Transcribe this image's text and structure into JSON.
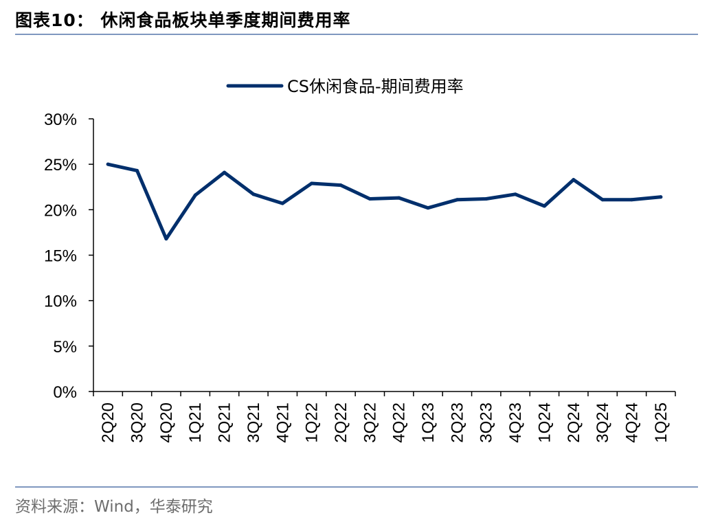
{
  "figure_title": "图表10：  休闲食品板块单季度期间费用率",
  "source": "资料来源：Wind，华泰研究",
  "colors": {
    "series": "#002f6c",
    "axis": "#000000",
    "rule": "#7f97bf"
  },
  "chart_data": {
    "type": "line",
    "title": "",
    "xlabel": "",
    "ylabel": "",
    "legend": "top-center",
    "grid": false,
    "ylim": [
      0,
      30
    ],
    "yticks": [
      0,
      5,
      10,
      15,
      20,
      25,
      30
    ],
    "ytick_labels": [
      "0%",
      "5%",
      "10%",
      "15%",
      "20%",
      "25%",
      "30%"
    ],
    "categories": [
      "2Q20",
      "3Q20",
      "4Q20",
      "1Q21",
      "2Q21",
      "3Q21",
      "4Q21",
      "1Q22",
      "2Q22",
      "3Q22",
      "4Q22",
      "1Q23",
      "2Q23",
      "3Q23",
      "4Q23",
      "1Q24",
      "2Q24",
      "3Q24",
      "4Q24",
      "1Q25"
    ],
    "series": [
      {
        "name": "CS休闲食品-期间费用率",
        "values": [
          25.0,
          24.3,
          16.8,
          21.6,
          24.1,
          21.7,
          20.7,
          22.9,
          22.7,
          21.2,
          21.3,
          20.2,
          21.1,
          21.2,
          21.7,
          20.4,
          23.3,
          21.1,
          21.1,
          21.4
        ]
      }
    ]
  }
}
